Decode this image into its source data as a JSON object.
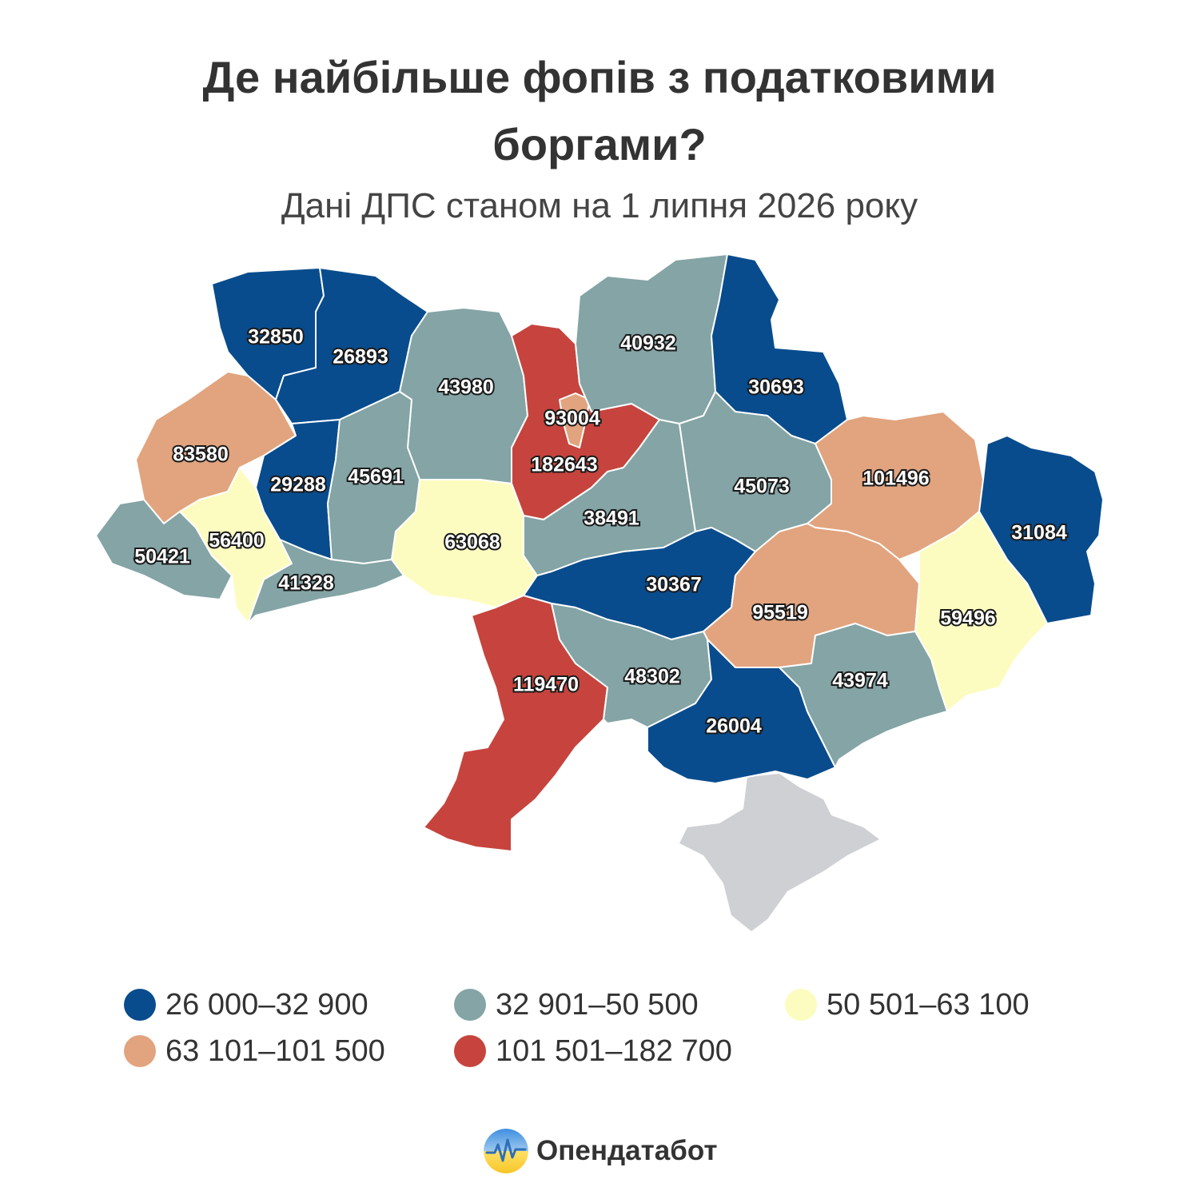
{
  "title": {
    "line1": "Де найбільше фопів з податковими",
    "line2": "боргами?"
  },
  "subtitle": "Дані ДПС станом на 1 липня 2026 року",
  "colors": {
    "bin1": "#084c8d",
    "bin2": "#84a4a5",
    "bin3": "#fdfcc0",
    "bin4": "#e1a47e",
    "bin5": "#c6443d",
    "occupied": "#cfd0d4",
    "border": "#ffffff"
  },
  "chart_data": {
    "type": "choropleth",
    "regions": [
      {
        "id": "volyn",
        "value": 32850,
        "bin": 1
      },
      {
        "id": "rivne",
        "value": 26893,
        "bin": 1
      },
      {
        "id": "zhytomyr",
        "value": 43980,
        "bin": 2
      },
      {
        "id": "kyiv-oblast",
        "value": 182643,
        "bin": 5
      },
      {
        "id": "kyiv-city",
        "value": 93004,
        "bin": 4
      },
      {
        "id": "chernihiv",
        "value": 40932,
        "bin": 2
      },
      {
        "id": "sumy",
        "value": 30693,
        "bin": 1
      },
      {
        "id": "lviv",
        "value": 83580,
        "bin": 4
      },
      {
        "id": "ternopil",
        "value": 29288,
        "bin": 1
      },
      {
        "id": "khmelnytskyi",
        "value": 45691,
        "bin": 2
      },
      {
        "id": "vinnytsia",
        "value": 63068,
        "bin": 3
      },
      {
        "id": "cherkasy",
        "value": 38491,
        "bin": 2
      },
      {
        "id": "poltava",
        "value": 45073,
        "bin": 2
      },
      {
        "id": "kharkiv",
        "value": 101496,
        "bin": 4
      },
      {
        "id": "luhansk",
        "value": 31084,
        "bin": 1
      },
      {
        "id": "zakarpattia",
        "value": 50421,
        "bin": 2
      },
      {
        "id": "ivano-frankivsk",
        "value": 56400,
        "bin": 3
      },
      {
        "id": "chernivtsi",
        "value": 41328,
        "bin": 2
      },
      {
        "id": "kirovohrad",
        "value": 30367,
        "bin": 1
      },
      {
        "id": "dnipropetrovsk",
        "value": 95519,
        "bin": 4
      },
      {
        "id": "donetsk",
        "value": 59496,
        "bin": 3
      },
      {
        "id": "odesa",
        "value": 119470,
        "bin": 5
      },
      {
        "id": "mykolaiv",
        "value": 48302,
        "bin": 2
      },
      {
        "id": "kherson",
        "value": 26004,
        "bin": 1
      },
      {
        "id": "zaporizhzhia",
        "value": 43974,
        "bin": 2
      }
    ],
    "legend": [
      {
        "bin": 1,
        "label": "26 000–32 900"
      },
      {
        "bin": 2,
        "label": "32 901–50 500"
      },
      {
        "bin": 3,
        "label": "50 501–63 100"
      },
      {
        "bin": 4,
        "label": "63 101–101 500"
      },
      {
        "bin": 5,
        "label": "101 501–182 700"
      }
    ]
  },
  "logo": {
    "text": "Опендатабот"
  }
}
